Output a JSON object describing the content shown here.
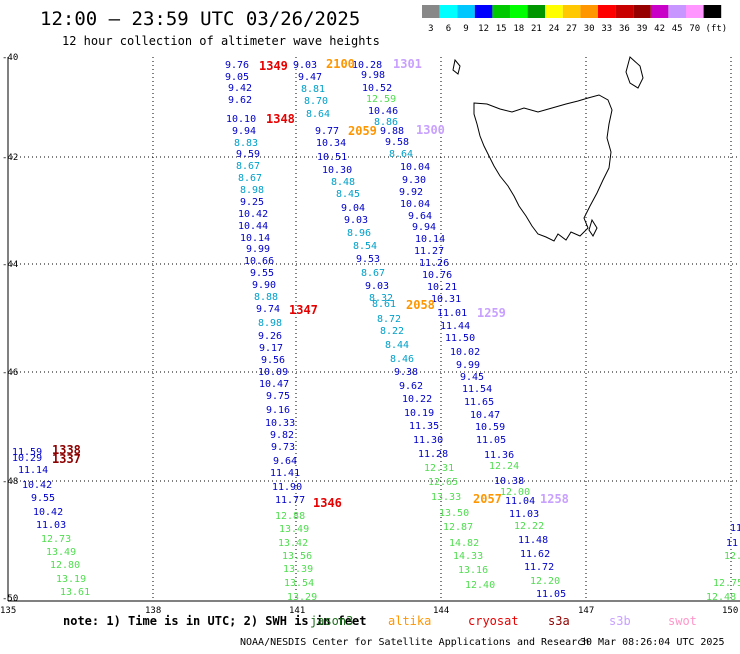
{
  "header": {
    "title": "12:00 — 23:59 UTC 03/26/2025",
    "subtitle": "12 hour collection of altimeter wave heights"
  },
  "legend": {
    "labels": [
      "3",
      "6",
      "9",
      "12",
      "15",
      "18",
      "21",
      "24",
      "27",
      "30",
      "33",
      "36",
      "39",
      "42",
      "45",
      "70",
      "(ft)"
    ],
    "colors": [
      "#888888",
      "#00ffff",
      "#00c8ff",
      "#0000ff",
      "#00c800",
      "#00ff00",
      "#009600",
      "#ffff00",
      "#ffc800",
      "#ff9600",
      "#ff0000",
      "#c80000",
      "#960000",
      "#c800c8",
      "#c896ff",
      "#ff96ff",
      "#000000"
    ]
  },
  "axes": {
    "lat_labels": [
      "-40",
      "-42",
      "-44",
      "-46",
      "-48",
      "-50"
    ],
    "lon_labels": [
      "135",
      "138",
      "141",
      "144",
      "147",
      "150"
    ]
  },
  "satellite_colors": {
    "jason3": "#1e6e1e",
    "altika": "#ff9600",
    "cryosat": "#e60000",
    "s3a": "#8c0000",
    "s3b": "#c8a0ff",
    "swot": "#ff96c8"
  },
  "track_markers": [
    {
      "text": "1349",
      "sat": "cryosat"
    },
    {
      "text": "1348",
      "sat": "cryosat"
    },
    {
      "text": "1347",
      "sat": "cryosat"
    },
    {
      "text": "1346",
      "sat": "cryosat"
    },
    {
      "text": "2100",
      "sat": "altika"
    },
    {
      "text": "2059",
      "sat": "altika"
    },
    {
      "text": "2058",
      "sat": "altika"
    },
    {
      "text": "2057",
      "sat": "altika"
    },
    {
      "text": "1301",
      "sat": "s3b"
    },
    {
      "text": "1300",
      "sat": "s3b"
    },
    {
      "text": "1259",
      "sat": "s3b"
    },
    {
      "text": "1258",
      "sat": "s3b"
    },
    {
      "text": "1338",
      "sat": "s3a"
    },
    {
      "text": "1337",
      "sat": "s3a"
    }
  ],
  "wave_heights": [
    {
      "v": "9.76",
      "c": "#0000c8"
    },
    {
      "v": "9.05",
      "c": "#0000c8"
    },
    {
      "v": "9.42",
      "c": "#0000c8"
    },
    {
      "v": "9.62",
      "c": "#0000c8"
    },
    {
      "v": "10.10",
      "c": "#0000c8"
    },
    {
      "v": "9.94",
      "c": "#0000c8"
    },
    {
      "v": "8.83",
      "c": "#00a0c8"
    },
    {
      "v": "9.59",
      "c": "#0000c8"
    },
    {
      "v": "8.67",
      "c": "#00a0c8"
    },
    {
      "v": "8.67",
      "c": "#00a0c8"
    },
    {
      "v": "8.98",
      "c": "#00a0c8"
    },
    {
      "v": "9.25",
      "c": "#0000c8"
    },
    {
      "v": "10.42",
      "c": "#0000c8"
    },
    {
      "v": "10.44",
      "c": "#0000c8"
    },
    {
      "v": "10.14",
      "c": "#0000c8"
    },
    {
      "v": "9.99",
      "c": "#0000c8"
    },
    {
      "v": "10.66",
      "c": "#0000c8"
    },
    {
      "v": "9.55",
      "c": "#0000c8"
    },
    {
      "v": "9.90",
      "c": "#0000c8"
    },
    {
      "v": "8.88",
      "c": "#00a0c8"
    },
    {
      "v": "9.74",
      "c": "#0000c8"
    },
    {
      "v": "8.98",
      "c": "#00a0c8"
    },
    {
      "v": "9.26",
      "c": "#0000c8"
    },
    {
      "v": "9.17",
      "c": "#0000c8"
    },
    {
      "v": "9.56",
      "c": "#0000c8"
    },
    {
      "v": "10.09",
      "c": "#0000c8"
    },
    {
      "v": "10.47",
      "c": "#0000c8"
    },
    {
      "v": "9.75",
      "c": "#0000c8"
    },
    {
      "v": "9.16",
      "c": "#0000c8"
    },
    {
      "v": "10.33",
      "c": "#0000c8"
    },
    {
      "v": "9.82",
      "c": "#0000c8"
    },
    {
      "v": "9.73",
      "c": "#0000c8"
    },
    {
      "v": "9.64",
      "c": "#0000c8"
    },
    {
      "v": "11.41",
      "c": "#0000c8"
    },
    {
      "v": "11.90",
      "c": "#0000c8"
    },
    {
      "v": "11.77",
      "c": "#0000c8"
    },
    {
      "v": "12.88",
      "c": "#50dc50"
    },
    {
      "v": "13.49",
      "c": "#50dc50"
    },
    {
      "v": "13.42",
      "c": "#50dc50"
    },
    {
      "v": "13.56",
      "c": "#50dc50"
    },
    {
      "v": "13.39",
      "c": "#50dc50"
    },
    {
      "v": "13.54",
      "c": "#50dc50"
    },
    {
      "v": "13.29",
      "c": "#50dc50"
    },
    {
      "v": "9.03",
      "c": "#0000c8"
    },
    {
      "v": "9.47",
      "c": "#0000c8"
    },
    {
      "v": "8.81",
      "c": "#00a0c8"
    },
    {
      "v": "8.70",
      "c": "#00a0c8"
    },
    {
      "v": "8.64",
      "c": "#00a0c8"
    },
    {
      "v": "9.77",
      "c": "#0000c8"
    },
    {
      "v": "10.34",
      "c": "#0000c8"
    },
    {
      "v": "10.51",
      "c": "#0000c8"
    },
    {
      "v": "10.30",
      "c": "#0000c8"
    },
    {
      "v": "8.48",
      "c": "#00a0c8"
    },
    {
      "v": "8.45",
      "c": "#00a0c8"
    },
    {
      "v": "9.04",
      "c": "#0000c8"
    },
    {
      "v": "9.03",
      "c": "#0000c8"
    },
    {
      "v": "8.96",
      "c": "#00a0c8"
    },
    {
      "v": "8.54",
      "c": "#00a0c8"
    },
    {
      "v": "9.53",
      "c": "#0000c8"
    },
    {
      "v": "8.67",
      "c": "#00a0c8"
    },
    {
      "v": "9.03",
      "c": "#0000c8"
    },
    {
      "v": "8.32",
      "c": "#00a0c8"
    },
    {
      "v": "8.61",
      "c": "#00a0c8"
    },
    {
      "v": "8.72",
      "c": "#00a0c8"
    },
    {
      "v": "8.22",
      "c": "#00a0c8"
    },
    {
      "v": "8.44",
      "c": "#00a0c8"
    },
    {
      "v": "8.46",
      "c": "#00a0c8"
    },
    {
      "v": "9.38",
      "c": "#0000c8"
    },
    {
      "v": "9.62",
      "c": "#0000c8"
    },
    {
      "v": "10.22",
      "c": "#0000c8"
    },
    {
      "v": "10.19",
      "c": "#0000c8"
    },
    {
      "v": "11.35",
      "c": "#0000c8"
    },
    {
      "v": "11.30",
      "c": "#0000c8"
    },
    {
      "v": "11.28",
      "c": "#0000c8"
    },
    {
      "v": "12.31",
      "c": "#50dc50"
    },
    {
      "v": "12.65",
      "c": "#50dc50"
    },
    {
      "v": "13.33",
      "c": "#50dc50"
    },
    {
      "v": "13.50",
      "c": "#50dc50"
    },
    {
      "v": "12.87",
      "c": "#50dc50"
    },
    {
      "v": "14.82",
      "c": "#50dc50"
    },
    {
      "v": "14.33",
      "c": "#50dc50"
    },
    {
      "v": "13.16",
      "c": "#50dc50"
    },
    {
      "v": "12.40",
      "c": "#50dc50"
    },
    {
      "v": "10.28",
      "c": "#0000c8"
    },
    {
      "v": "9.98",
      "c": "#0000c8"
    },
    {
      "v": "10.52",
      "c": "#0000c8"
    },
    {
      "v": "12.59",
      "c": "#50dc50"
    },
    {
      "v": "10.46",
      "c": "#0000c8"
    },
    {
      "v": "8.86",
      "c": "#00a0c8"
    },
    {
      "v": "9.88",
      "c": "#0000c8"
    },
    {
      "v": "9.58",
      "c": "#0000c8"
    },
    {
      "v": "8.64",
      "c": "#00a0c8"
    },
    {
      "v": "10.04",
      "c": "#0000c8"
    },
    {
      "v": "9.30",
      "c": "#0000c8"
    },
    {
      "v": "9.92",
      "c": "#0000c8"
    },
    {
      "v": "10.04",
      "c": "#0000c8"
    },
    {
      "v": "9.64",
      "c": "#0000c8"
    },
    {
      "v": "9.94",
      "c": "#0000c8"
    },
    {
      "v": "10.14",
      "c": "#0000c8"
    },
    {
      "v": "11.27",
      "c": "#0000c8"
    },
    {
      "v": "11.26",
      "c": "#0000c8"
    },
    {
      "v": "10.76",
      "c": "#0000c8"
    },
    {
      "v": "10.21",
      "c": "#0000c8"
    },
    {
      "v": "10.31",
      "c": "#0000c8"
    },
    {
      "v": "11.01",
      "c": "#0000c8"
    },
    {
      "v": "11.44",
      "c": "#0000c8"
    },
    {
      "v": "11.50",
      "c": "#0000c8"
    },
    {
      "v": "10.02",
      "c": "#0000c8"
    },
    {
      "v": "9.99",
      "c": "#0000c8"
    },
    {
      "v": "9.45",
      "c": "#0000c8"
    },
    {
      "v": "11.54",
      "c": "#0000c8"
    },
    {
      "v": "11.65",
      "c": "#0000c8"
    },
    {
      "v": "10.47",
      "c": "#0000c8"
    },
    {
      "v": "10.59",
      "c": "#0000c8"
    },
    {
      "v": "11.05",
      "c": "#0000c8"
    },
    {
      "v": "11.36",
      "c": "#0000c8"
    },
    {
      "v": "12.24",
      "c": "#50dc50"
    },
    {
      "v": "10.38",
      "c": "#0000c8"
    },
    {
      "v": "12.00",
      "c": "#50dc50"
    },
    {
      "v": "11.04",
      "c": "#0000c8"
    },
    {
      "v": "11.03",
      "c": "#0000c8"
    },
    {
      "v": "12.22",
      "c": "#50dc50"
    },
    {
      "v": "11.48",
      "c": "#0000c8"
    },
    {
      "v": "11.62",
      "c": "#0000c8"
    },
    {
      "v": "11.72",
      "c": "#0000c8"
    },
    {
      "v": "12.20",
      "c": "#50dc50"
    },
    {
      "v": "11.05",
      "c": "#0000c8"
    },
    {
      "v": "11.59",
      "c": "#0000c8"
    },
    {
      "v": "10.29",
      "c": "#0000c8"
    },
    {
      "v": "11.14",
      "c": "#0000c8"
    },
    {
      "v": "10.42",
      "c": "#0000c8"
    },
    {
      "v": "9.55",
      "c": "#0000c8"
    },
    {
      "v": "10.42",
      "c": "#0000c8"
    },
    {
      "v": "11.03",
      "c": "#0000c8"
    },
    {
      "v": "12.73",
      "c": "#50dc50"
    },
    {
      "v": "13.49",
      "c": "#50dc50"
    },
    {
      "v": "12.80",
      "c": "#50dc50"
    },
    {
      "v": "13.19",
      "c": "#50dc50"
    },
    {
      "v": "13.61",
      "c": "#50dc50"
    },
    {
      "v": "11",
      "c": "#0000c8"
    },
    {
      "v": "11.",
      "c": "#0000c8"
    },
    {
      "v": "12.",
      "c": "#50dc50"
    },
    {
      "v": "12.75",
      "c": "#50dc50"
    },
    {
      "v": "12.48",
      "c": "#50dc50"
    }
  ],
  "footer": {
    "note": "note: 1) Time is in UTC; 2) SWH is in feet",
    "sat_names": [
      "jason3",
      "altika",
      "cryosat",
      "s3a",
      "s3b",
      "swot"
    ],
    "credit": "NOAA/NESDIS Center for Satellite Applications and Research",
    "timestamp": "30 Mar 08:26:04 UTC 2025"
  }
}
